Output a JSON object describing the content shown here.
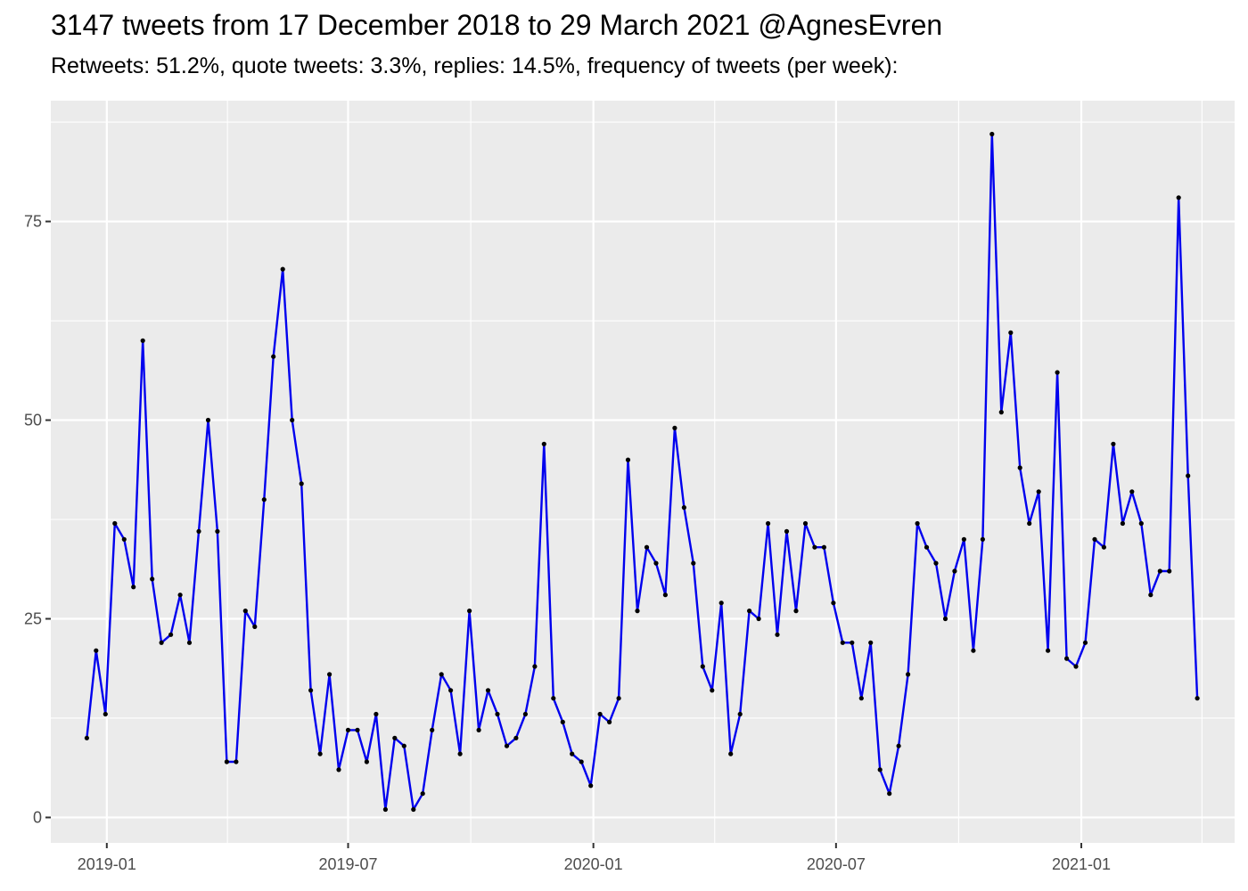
{
  "title": "3147 tweets from 17 December 2018 to 29 March 2021 @AgnesEvren",
  "subtitle": "Retweets: 51.2%, quote tweets: 3.3%, replies: 14.5%, frequency of tweets (per week):",
  "colors": {
    "line": "#0000ee",
    "point": "#000000",
    "panel": "#ebebeb",
    "grid": "#ffffff"
  },
  "chart_data": {
    "type": "line",
    "title": "3147 tweets from 17 December 2018 to 29 March 2021 @AgnesEvren",
    "subtitle": "Retweets: 51.2%, quote tweets: 3.3%, replies: 14.5%, frequency of tweets (per week):",
    "xlabel": "",
    "ylabel": "",
    "x_start": "2018-12-17",
    "x_step_days": 7,
    "x_range": [
      "2018-11-20",
      "2021-04-26"
    ],
    "ylim": [
      -3.2,
      90.2
    ],
    "x_ticks": [
      {
        "date": "2019-01-01",
        "label": "2019-01"
      },
      {
        "date": "2019-07-01",
        "label": "2019-07"
      },
      {
        "date": "2020-01-01",
        "label": "2020-01"
      },
      {
        "date": "2020-07-01",
        "label": "2020-07"
      },
      {
        "date": "2021-01-01",
        "label": "2021-01"
      }
    ],
    "y_ticks": [
      0,
      25,
      50,
      75
    ],
    "grid": true,
    "series": [
      {
        "values": [
          10,
          21,
          13,
          37,
          35,
          29,
          60,
          30,
          22,
          23,
          28,
          22,
          36,
          50,
          36,
          7,
          7,
          26,
          24,
          40,
          58,
          69,
          50,
          42,
          16,
          8,
          18,
          6,
          11,
          11,
          7,
          13,
          1,
          10,
          9,
          1,
          3,
          11,
          18,
          16,
          8,
          26,
          11,
          16,
          13,
          9,
          10,
          13,
          19,
          47,
          15,
          12,
          8,
          7,
          4,
          13,
          12,
          15,
          45,
          26,
          34,
          32,
          28,
          49,
          39,
          32,
          19,
          16,
          27,
          8,
          13,
          26,
          25,
          37,
          23,
          36,
          26,
          37,
          34,
          34,
          27,
          22,
          22,
          15,
          22,
          6,
          3,
          9,
          18,
          37,
          34,
          32,
          25,
          31,
          35,
          21,
          35,
          86,
          51,
          61,
          44,
          37,
          41,
          21,
          56,
          20,
          19,
          22,
          35,
          34,
          47,
          37,
          41,
          37,
          28,
          31,
          31,
          78,
          43,
          15
        ]
      }
    ]
  }
}
